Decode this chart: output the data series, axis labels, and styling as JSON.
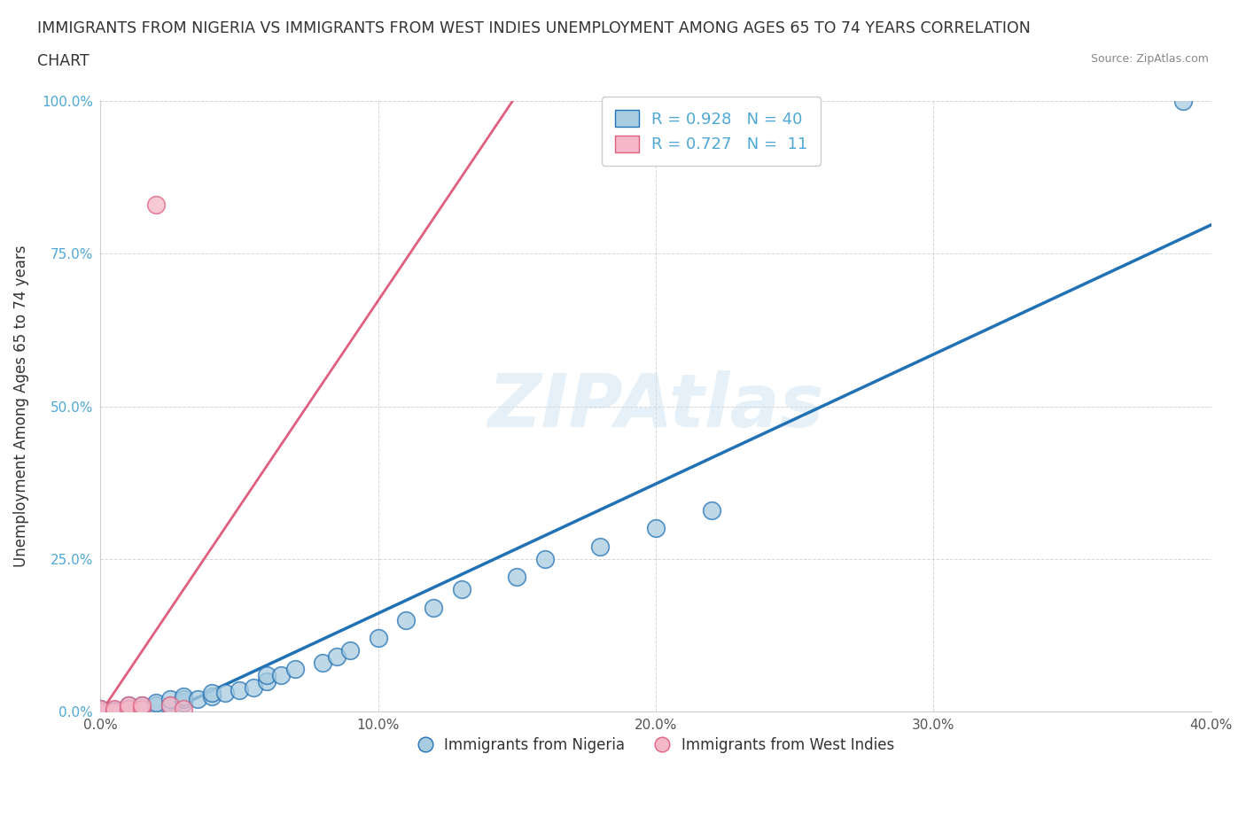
{
  "title_line1": "IMMIGRANTS FROM NIGERIA VS IMMIGRANTS FROM WEST INDIES UNEMPLOYMENT AMONG AGES 65 TO 74 YEARS CORRELATION",
  "title_line2": "CHART",
  "source": "Source: ZipAtlas.com",
  "watermark": "ZIPAtlas",
  "ylabel": "Unemployment Among Ages 65 to 74 years",
  "xlim": [
    0.0,
    0.4
  ],
  "ylim": [
    0.0,
    1.0
  ],
  "xticks": [
    0.0,
    0.1,
    0.2,
    0.3,
    0.4
  ],
  "xtick_labels": [
    "0.0%",
    "10.0%",
    "20.0%",
    "30.0%",
    "40.0%"
  ],
  "yticks": [
    0.0,
    0.25,
    0.5,
    0.75,
    1.0
  ],
  "ytick_labels": [
    "0.0%",
    "25.0%",
    "50.0%",
    "75.0%",
    "100.0%"
  ],
  "nigeria_R": 0.928,
  "nigeria_N": 40,
  "westindies_R": 0.727,
  "westindies_N": 11,
  "nigeria_color": "#a8cce0",
  "westindies_color": "#f5b8c8",
  "nigeria_line_color": "#2171b5",
  "westindies_line_color": "#e06080",
  "nigeria_x": [
    0.0,
    0.0,
    0.0,
    0.005,
    0.005,
    0.01,
    0.01,
    0.01,
    0.015,
    0.015,
    0.02,
    0.02,
    0.025,
    0.025,
    0.03,
    0.03,
    0.03,
    0.035,
    0.04,
    0.04,
    0.045,
    0.05,
    0.055,
    0.06,
    0.06,
    0.065,
    0.07,
    0.08,
    0.085,
    0.09,
    0.1,
    0.11,
    0.12,
    0.13,
    0.15,
    0.16,
    0.18,
    0.2,
    0.22,
    0.39
  ],
  "nigeria_y": [
    0.0,
    0.002,
    0.005,
    0.0,
    0.003,
    0.0,
    0.005,
    0.01,
    0.005,
    0.01,
    0.01,
    0.015,
    0.01,
    0.02,
    0.015,
    0.02,
    0.025,
    0.02,
    0.025,
    0.03,
    0.03,
    0.035,
    0.04,
    0.05,
    0.06,
    0.06,
    0.07,
    0.08,
    0.09,
    0.1,
    0.12,
    0.15,
    0.17,
    0.2,
    0.22,
    0.25,
    0.27,
    0.3,
    0.33,
    1.0
  ],
  "westindies_x": [
    0.0,
    0.0,
    0.005,
    0.005,
    0.01,
    0.01,
    0.015,
    0.015,
    0.02,
    0.025,
    0.03
  ],
  "westindies_y": [
    0.0,
    0.005,
    0.0,
    0.005,
    0.005,
    0.01,
    0.005,
    0.01,
    0.83,
    0.01,
    0.005
  ]
}
